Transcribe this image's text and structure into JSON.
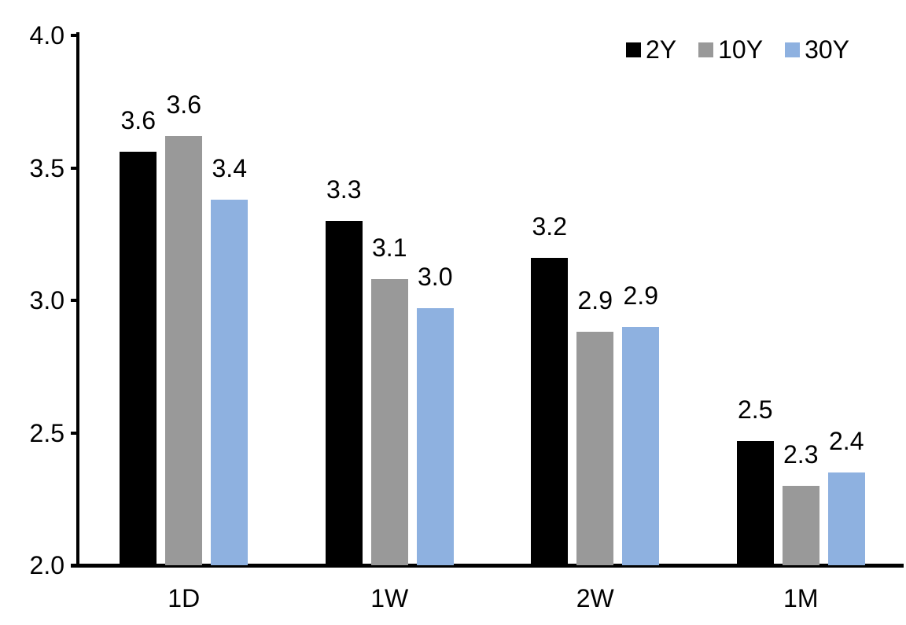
{
  "chart_data": {
    "type": "bar",
    "title": "",
    "xlabel": "",
    "ylabel": "",
    "categories": [
      "1D",
      "1W",
      "2W",
      "1M"
    ],
    "series": [
      {
        "name": "2Y",
        "color": "#000000",
        "values": [
          3.56,
          3.3,
          3.16,
          2.47
        ],
        "labels": [
          "3.6",
          "3.3",
          "3.2",
          "2.5"
        ]
      },
      {
        "name": "10Y",
        "color": "#999999",
        "values": [
          3.62,
          3.08,
          2.88,
          2.3
        ],
        "labels": [
          "3.6",
          "3.1",
          "2.9",
          "2.3"
        ]
      },
      {
        "name": "30Y",
        "color": "#8EB1E0",
        "values": [
          3.38,
          2.97,
          2.9,
          2.35
        ],
        "labels": [
          "3.4",
          "3.0",
          "2.9",
          "2.4"
        ]
      }
    ],
    "ylim": [
      2.0,
      4.0
    ],
    "yticks": [
      2.0,
      2.5,
      3.0,
      3.5,
      4.0
    ],
    "ytick_labels": [
      "2.0",
      "2.5",
      "3.0",
      "3.5",
      "4.0"
    ],
    "grid": false,
    "legend_position": "top-right",
    "axis_color": "#000000",
    "text_color": "#000000",
    "background_color": "#ffffff"
  }
}
